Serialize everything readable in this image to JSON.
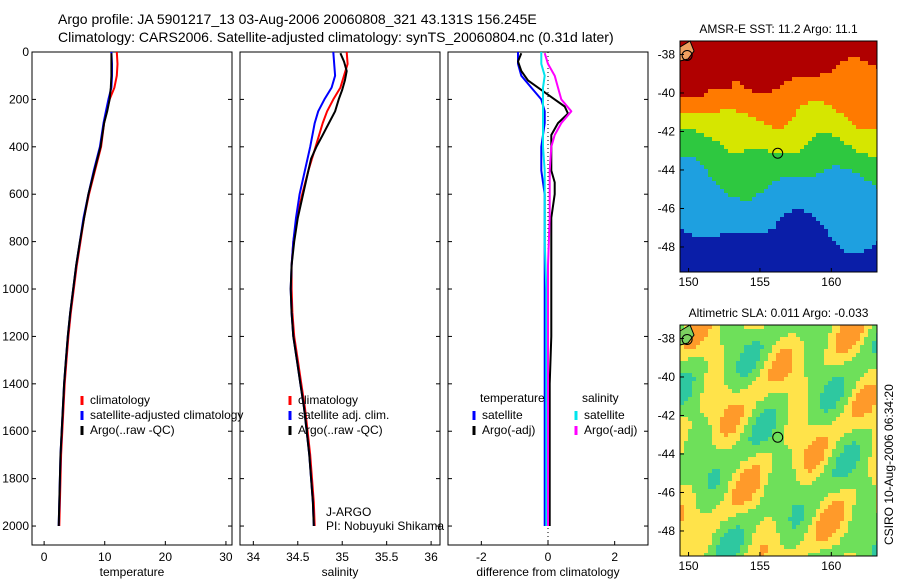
{
  "header": {
    "line1": "Argo profile: JA 5901217_13 03-Aug-2006 20060808_321 43.131S 156.245E",
    "line2": "Climatology: CARS2006. Satellite-adjusted climatology: synTS_20060804.nc (0.31d later)"
  },
  "footer": {
    "credit": "CSIRO 10-Aug-2006 06:34:20"
  },
  "chart_data": [
    {
      "type": "line",
      "name": "temperature-panel",
      "xlabel": "temperature",
      "ylabel": "",
      "xlim": [
        -2,
        31
      ],
      "ylim": [
        2080,
        0
      ],
      "y_reversed": true,
      "xticks": [
        0,
        10,
        20,
        30
      ],
      "yticks": [
        0,
        200,
        400,
        600,
        800,
        1000,
        1200,
        1400,
        1600,
        1800,
        2000
      ],
      "legend": [
        "climatology",
        "satellite-adjusted climatology",
        "Argo(..raw -QC)"
      ],
      "legend_position": "lower-right",
      "series": [
        {
          "name": "climatology",
          "color": "#ff0000",
          "points": [
            [
              12.0,
              0
            ],
            [
              12.1,
              50
            ],
            [
              12.0,
              100
            ],
            [
              11.6,
              150
            ],
            [
              10.8,
              200
            ],
            [
              10.3,
              250
            ],
            [
              9.9,
              300
            ],
            [
              9.4,
              400
            ],
            [
              8.4,
              500
            ],
            [
              7.4,
              600
            ],
            [
              6.6,
              700
            ],
            [
              6.0,
              800
            ],
            [
              5.4,
              900
            ],
            [
              4.9,
              1000
            ],
            [
              4.4,
              1100
            ],
            [
              4.0,
              1200
            ],
            [
              3.7,
              1300
            ],
            [
              3.4,
              1400
            ],
            [
              3.2,
              1500
            ],
            [
              3.0,
              1600
            ],
            [
              2.8,
              1700
            ],
            [
              2.7,
              1800
            ],
            [
              2.6,
              1900
            ],
            [
              2.5,
              2000
            ]
          ]
        },
        {
          "name": "satellite-adjusted climatology",
          "color": "#0000ff",
          "points": [
            [
              11.1,
              0
            ],
            [
              11.2,
              50
            ],
            [
              11.2,
              100
            ],
            [
              11.1,
              150
            ],
            [
              10.6,
              200
            ],
            [
              10.2,
              250
            ],
            [
              9.8,
              300
            ],
            [
              9.2,
              400
            ],
            [
              8.2,
              500
            ],
            [
              7.3,
              600
            ],
            [
              6.5,
              700
            ],
            [
              5.9,
              800
            ],
            [
              5.3,
              900
            ],
            [
              4.8,
              1000
            ],
            [
              4.3,
              1100
            ],
            [
              3.9,
              1200
            ],
            [
              3.6,
              1300
            ],
            [
              3.3,
              1400
            ],
            [
              3.1,
              1500
            ],
            [
              2.9,
              1600
            ],
            [
              2.7,
              1700
            ],
            [
              2.6,
              1800
            ],
            [
              2.5,
              1900
            ],
            [
              2.4,
              2000
            ]
          ]
        },
        {
          "name": "Argo(..raw -QC)",
          "color": "#000000",
          "points": [
            [
              11.1,
              5
            ],
            [
              11.1,
              50
            ],
            [
              11.1,
              100
            ],
            [
              11.0,
              150
            ],
            [
              10.8,
              200
            ],
            [
              10.4,
              250
            ],
            [
              9.9,
              300
            ],
            [
              9.3,
              400
            ],
            [
              8.3,
              500
            ],
            [
              7.3,
              600
            ],
            [
              6.6,
              700
            ],
            [
              5.9,
              800
            ],
            [
              5.3,
              900
            ],
            [
              4.8,
              1000
            ],
            [
              4.3,
              1100
            ],
            [
              3.9,
              1200
            ],
            [
              3.6,
              1300
            ],
            [
              3.3,
              1400
            ],
            [
              3.1,
              1500
            ],
            [
              2.9,
              1600
            ],
            [
              2.7,
              1700
            ],
            [
              2.6,
              1800
            ],
            [
              2.5,
              1900
            ],
            [
              2.4,
              2000
            ]
          ]
        }
      ]
    },
    {
      "type": "line",
      "name": "salinity-panel",
      "xlabel": "salinity",
      "ylabel": "",
      "xlim": [
        33.85,
        36.1
      ],
      "ylim": [
        2080,
        0
      ],
      "y_reversed": true,
      "xticks": [
        34,
        34.5,
        35,
        35.5,
        36
      ],
      "yticks": [
        0,
        200,
        400,
        600,
        800,
        1000,
        1200,
        1400,
        1600,
        1800,
        2000
      ],
      "legend": [
        "climatology",
        "satellite adj. clim.",
        "Argo(..raw -QC)"
      ],
      "legend_position": "lower-right",
      "annotation": [
        "J-ARGO",
        "PI: Nobuyuki Shikama"
      ],
      "series": [
        {
          "name": "climatology",
          "color": "#ff0000",
          "points": [
            [
              35.05,
              0
            ],
            [
              35.06,
              50
            ],
            [
              35.02,
              100
            ],
            [
              34.98,
              150
            ],
            [
              34.9,
              200
            ],
            [
              34.83,
              250
            ],
            [
              34.78,
              300
            ],
            [
              34.7,
              400
            ],
            [
              34.62,
              500
            ],
            [
              34.55,
              600
            ],
            [
              34.49,
              700
            ],
            [
              34.45,
              800
            ],
            [
              34.43,
              900
            ],
            [
              34.43,
              1000
            ],
            [
              34.44,
              1100
            ],
            [
              34.46,
              1200
            ],
            [
              34.5,
              1300
            ],
            [
              34.54,
              1400
            ],
            [
              34.58,
              1500
            ],
            [
              34.61,
              1600
            ],
            [
              34.64,
              1700
            ],
            [
              34.66,
              1800
            ],
            [
              34.68,
              1900
            ],
            [
              34.69,
              2000
            ]
          ]
        },
        {
          "name": "satellite adj. clim.",
          "color": "#0000ff",
          "points": [
            [
              34.9,
              0
            ],
            [
              34.91,
              50
            ],
            [
              34.92,
              100
            ],
            [
              34.88,
              150
            ],
            [
              34.8,
              200
            ],
            [
              34.73,
              250
            ],
            [
              34.69,
              300
            ],
            [
              34.64,
              400
            ],
            [
              34.58,
              500
            ],
            [
              34.52,
              600
            ],
            [
              34.48,
              700
            ],
            [
              34.45,
              800
            ],
            [
              34.43,
              900
            ],
            [
              34.42,
              1000
            ],
            [
              34.43,
              1100
            ],
            [
              34.45,
              1200
            ],
            [
              34.49,
              1300
            ],
            [
              34.53,
              1400
            ],
            [
              34.57,
              1500
            ],
            [
              34.6,
              1600
            ],
            [
              34.63,
              1700
            ],
            [
              34.65,
              1800
            ],
            [
              34.67,
              1900
            ],
            [
              34.68,
              2000
            ]
          ]
        },
        {
          "name": "Argo(..raw -QC)",
          "color": "#000000",
          "points": [
            [
              34.98,
              5
            ],
            [
              35.02,
              40
            ],
            [
              35.05,
              80
            ],
            [
              35.03,
              120
            ],
            [
              35.0,
              160
            ],
            [
              34.96,
              200
            ],
            [
              34.92,
              250
            ],
            [
              34.85,
              300
            ],
            [
              34.78,
              350
            ],
            [
              34.71,
              400
            ],
            [
              34.65,
              450
            ],
            [
              34.62,
              500
            ],
            [
              34.56,
              600
            ],
            [
              34.5,
              700
            ],
            [
              34.46,
              800
            ],
            [
              34.43,
              900
            ],
            [
              34.42,
              1000
            ],
            [
              34.43,
              1100
            ],
            [
              34.45,
              1200
            ],
            [
              34.49,
              1300
            ],
            [
              34.53,
              1400
            ],
            [
              34.57,
              1500
            ],
            [
              34.6,
              1600
            ],
            [
              34.63,
              1700
            ],
            [
              34.65,
              1800
            ],
            [
              34.67,
              1900
            ],
            [
              34.68,
              2000
            ]
          ]
        }
      ]
    },
    {
      "type": "line",
      "name": "difference-panel",
      "xlabel": "difference from climatology",
      "ylabel": "",
      "xlim": [
        -3,
        3
      ],
      "ylim": [
        2080,
        0
      ],
      "y_reversed": true,
      "xticks": [
        -2,
        0,
        2
      ],
      "yticks": [
        0,
        200,
        400,
        600,
        800,
        1000,
        1200,
        1400,
        1600,
        1800,
        2000
      ],
      "legend_titles": [
        "temperature",
        "salinity"
      ],
      "legend": [
        "satellite",
        "Argo(-adj)",
        "satellite",
        "Argo(-adj)"
      ],
      "legend_position": "lower-right",
      "series": [
        {
          "name": "satellite",
          "group": "temperature",
          "color": "#0000ff",
          "points": [
            [
              -0.9,
              0
            ],
            [
              -0.9,
              50
            ],
            [
              -0.8,
              100
            ],
            [
              -0.5,
              150
            ],
            [
              -0.2,
              200
            ],
            [
              -0.1,
              250
            ],
            [
              -0.1,
              300
            ],
            [
              -0.2,
              400
            ],
            [
              -0.2,
              500
            ],
            [
              -0.1,
              600
            ],
            [
              -0.1,
              800
            ],
            [
              -0.1,
              1000
            ],
            [
              -0.1,
              1200
            ],
            [
              -0.1,
              1400
            ],
            [
              -0.1,
              1600
            ],
            [
              -0.1,
              1800
            ],
            [
              -0.1,
              2000
            ]
          ]
        },
        {
          "name": "Argo(-adj)",
          "group": "temperature",
          "color": "#000000",
          "points": [
            [
              -0.8,
              5
            ],
            [
              -0.9,
              40
            ],
            [
              -0.8,
              80
            ],
            [
              -0.6,
              120
            ],
            [
              -0.2,
              160
            ],
            [
              0.2,
              200
            ],
            [
              0.5,
              230
            ],
            [
              0.6,
              260
            ],
            [
              0.3,
              300
            ],
            [
              0.1,
              350
            ],
            [
              0.1,
              400
            ],
            [
              0.1,
              500
            ],
            [
              0.2,
              550
            ],
            [
              0.2,
              600
            ],
            [
              0.1,
              700
            ],
            [
              0.1,
              800
            ],
            [
              0.1,
              900
            ],
            [
              0.1,
              1000
            ],
            [
              0.1,
              1200
            ],
            [
              0.05,
              1400
            ],
            [
              0.05,
              1600
            ],
            [
              0.05,
              1800
            ],
            [
              0.05,
              2000
            ]
          ]
        },
        {
          "name": "satellite",
          "group": "salinity",
          "color": "#00e5ee",
          "points": [
            [
              -0.2,
              0
            ],
            [
              -0.2,
              50
            ],
            [
              -0.1,
              100
            ],
            [
              -0.15,
              150
            ],
            [
              -0.15,
              250
            ],
            [
              -0.15,
              300
            ],
            [
              -0.15,
              400
            ],
            [
              -0.1,
              500
            ],
            [
              -0.1,
              600
            ],
            [
              -0.1,
              800
            ],
            [
              -0.05,
              1000
            ],
            [
              -0.05,
              1200
            ],
            [
              -0.05,
              1400
            ],
            [
              -0.05,
              1600
            ],
            [
              -0.05,
              1800
            ],
            [
              -0.05,
              2000
            ]
          ]
        },
        {
          "name": "Argo(-adj)",
          "group": "salinity",
          "color": "#ff00ff",
          "points": [
            [
              -0.1,
              5
            ],
            [
              0.0,
              50
            ],
            [
              0.2,
              100
            ],
            [
              0.3,
              150
            ],
            [
              0.4,
              200
            ],
            [
              0.7,
              250
            ],
            [
              0.4,
              300
            ],
            [
              0.2,
              350
            ],
            [
              0.1,
              400
            ],
            [
              0.05,
              500
            ],
            [
              0.05,
              700
            ],
            [
              0.0,
              900
            ],
            [
              0.0,
              1100
            ],
            [
              0.0,
              1300
            ],
            [
              0.0,
              1500
            ],
            [
              0.0,
              1700
            ],
            [
              0.0,
              1900
            ],
            [
              0.0,
              2000
            ]
          ]
        }
      ]
    },
    {
      "type": "heatmap",
      "name": "sst-map",
      "title": "AMSR-E SST: 11.2  Argo: 11.1",
      "xlim": [
        149.4,
        163.2
      ],
      "ylim": [
        -49.3,
        -37.3
      ],
      "xticks": [
        150,
        155,
        160
      ],
      "yticks": [
        -38,
        -40,
        -42,
        -44,
        -46,
        -48
      ],
      "marker": {
        "lon": 156.245,
        "lat": -43.131
      },
      "colors": {
        "hot": "#b00000",
        "warm": "#ff7a00",
        "mid": "#d6e600",
        "cool": "#2ec840",
        "cold": "#1ea0e0",
        "coldest": "#0a1ea8"
      }
    },
    {
      "type": "heatmap",
      "name": "sla-map",
      "title": "Altimetric SLA: 0.011  Argo: -0.033",
      "xlim": [
        149.4,
        163.2
      ],
      "ylim": [
        -49.3,
        -37.3
      ],
      "xticks": [
        150,
        155,
        160
      ],
      "yticks": [
        -38,
        -40,
        -42,
        -44,
        -46,
        -48
      ],
      "marker": {
        "lon": 156.245,
        "lat": -43.131
      },
      "colors": {
        "high": "#ff9a2a",
        "mid": "#ffe34a",
        "low": "#6ee05a",
        "lowest": "#2ec8a0"
      }
    }
  ]
}
